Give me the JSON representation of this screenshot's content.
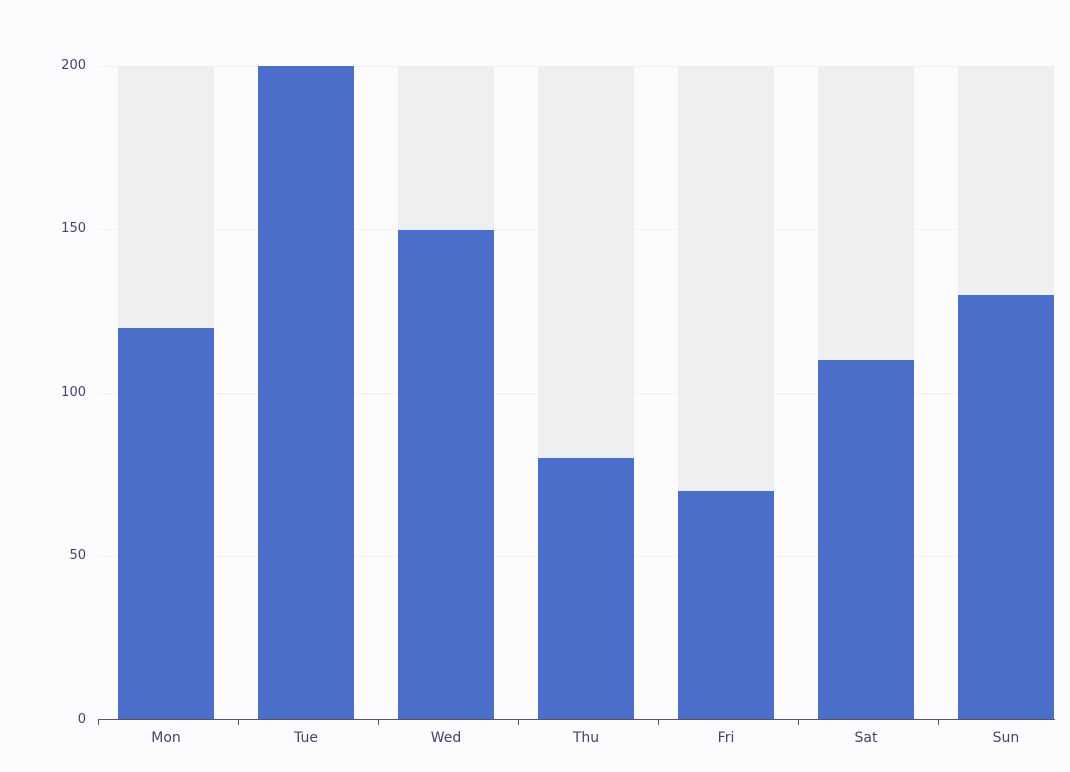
{
  "chart_data": {
    "type": "bar",
    "title": "",
    "xlabel": "",
    "ylabel": "",
    "categories": [
      "Mon",
      "Tue",
      "Wed",
      "Thu",
      "Fri",
      "Sat",
      "Sun"
    ],
    "values": [
      120,
      200,
      150,
      80,
      70,
      110,
      130
    ],
    "background_values": [
      200,
      200,
      200,
      200,
      200,
      200,
      200
    ],
    "ylim": [
      0,
      200
    ],
    "yticks": [
      "0",
      "50",
      "100",
      "150",
      "200"
    ],
    "grid": true,
    "legend": null,
    "colors": {
      "bar": "#4a6ec9",
      "bar_background": "#eeeff1"
    }
  }
}
